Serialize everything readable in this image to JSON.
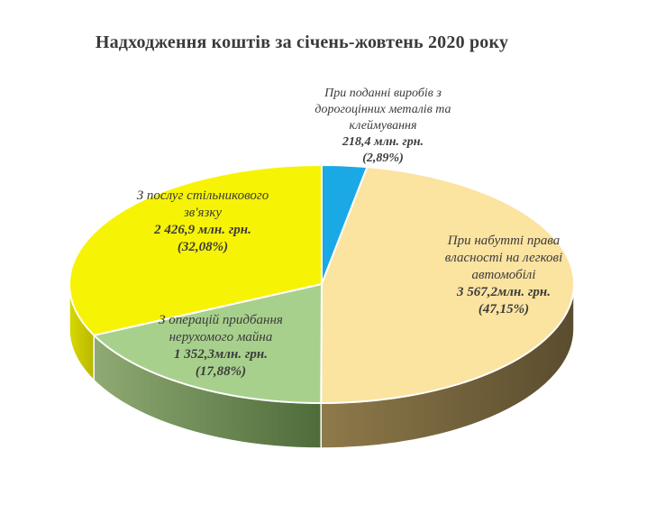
{
  "chart_data": {
    "type": "pie",
    "style": "3d",
    "title": "Надходження коштів за січень-жовтень 2020 року",
    "slices": [
      {
        "label": "При поданні виробів з дорогоцінних металів та клеймування",
        "value": 218.4,
        "value_label": "218,4 млн. грн.",
        "percent_label": "(2,89%)",
        "percent": 2.89,
        "color": "#1BA9E6"
      },
      {
        "label": "При набутті права власності на легкові автомобілі",
        "value": 3567.2,
        "value_label": "3 567,2млн. грн.",
        "percent_label": "(47,15%)",
        "percent": 47.15,
        "color": "#FBE3A0"
      },
      {
        "label": "З операцій придбання нерухомого майна",
        "value": 1352.3,
        "value_label": "1 352,3млн. грн.",
        "percent_label": "(17,88%)",
        "percent": 17.88,
        "color": "#A8D08D"
      },
      {
        "label": "З послуг стільникового зв'язку",
        "value": 2426.9,
        "value_label": "2 426,9 млн. грн.",
        "percent_label": "(32,08%)",
        "percent": 32.08,
        "color": "#F7F304"
      }
    ]
  }
}
